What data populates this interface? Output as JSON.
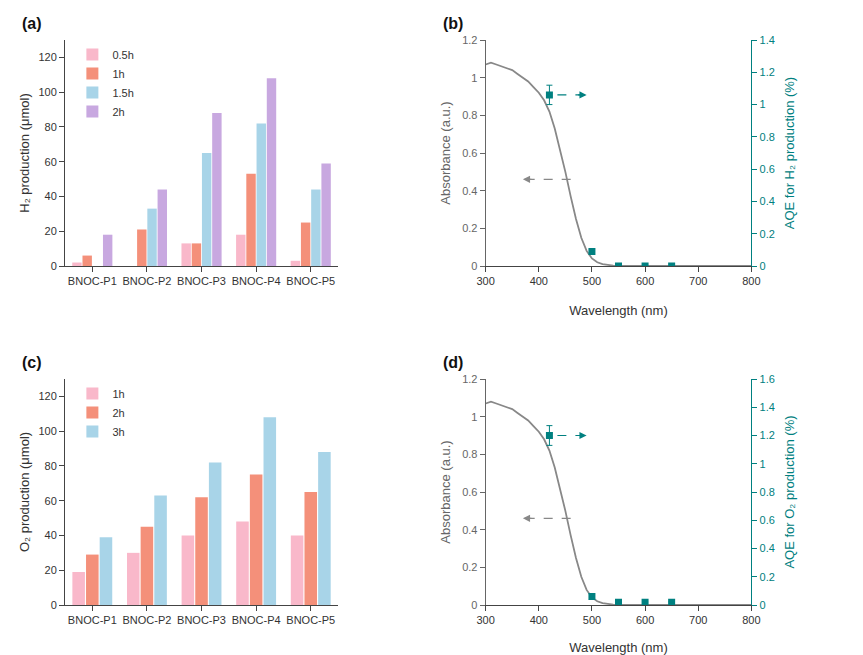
{
  "chart_data": [
    {
      "type": "bar",
      "title": "(a)",
      "categories": [
        "BNOC-P1",
        "BNOC-P2",
        "BNOC-P3",
        "BNOC-P4",
        "BNOC-P5"
      ],
      "series": [
        {
          "name": "0.5h",
          "color": "#F9B8CA",
          "values": [
            2,
            0,
            13,
            18,
            3
          ]
        },
        {
          "name": "1h",
          "color": "#F4907A",
          "values": [
            6,
            21,
            13,
            53,
            25
          ]
        },
        {
          "name": "1.5h",
          "color": "#A8D4E8",
          "values": [
            0,
            33,
            65,
            82,
            44
          ]
        },
        {
          "name": "2h",
          "color": "#C8A8E0",
          "values": [
            18,
            44,
            88,
            108,
            59
          ]
        }
      ],
      "y_label": "H₂ production (μmol)",
      "ylim": [
        0,
        130
      ],
      "yticks": [
        0,
        20,
        40,
        60,
        80,
        100,
        120
      ],
      "legend": "upper left",
      "grid": false
    },
    {
      "type": "line",
      "title": "(b)",
      "x_label": "Wavelength (nm)",
      "y_label": "Absorbance (a.u.)",
      "y2_label": "AQE for H₂ production (%)",
      "xlim": [
        300,
        800
      ],
      "xticks": [
        300,
        400,
        500,
        600,
        700,
        800
      ],
      "ylim": [
        0,
        1.2
      ],
      "yticks": [
        0,
        0.2,
        0.4,
        0.6,
        0.8,
        1,
        1.2
      ],
      "y2lim": [
        0,
        1.4
      ],
      "y2ticks": [
        0,
        0.2,
        0.4,
        0.6,
        0.8,
        1,
        1.2,
        1.4
      ],
      "grid": false,
      "series": [
        {
          "type": "line",
          "color": "#888888",
          "x": [
            300,
            310,
            320,
            330,
            340,
            350,
            360,
            370,
            380,
            390,
            400,
            410,
            420,
            430,
            440,
            450,
            460,
            470,
            480,
            490,
            500,
            510,
            520,
            530,
            540,
            550,
            560,
            570,
            580,
            590,
            600,
            620,
            640,
            660,
            700,
            750,
            800
          ],
          "values": [
            1.07,
            1.08,
            1.07,
            1.06,
            1.05,
            1.04,
            1.02,
            1.0,
            0.98,
            0.95,
            0.92,
            0.88,
            0.82,
            0.73,
            0.62,
            0.5,
            0.37,
            0.25,
            0.15,
            0.08,
            0.04,
            0.02,
            0.01,
            0.005,
            0.002,
            0.001,
            0.001,
            0.001,
            0.001,
            0.001,
            0.001,
            0.001,
            0.001,
            0.001,
            0.001,
            0.001,
            0.001
          ]
        },
        {
          "type": "scatter",
          "marker": "square",
          "axis": "y2",
          "color": "#008080",
          "x": [
            420,
            500,
            550,
            600,
            650
          ],
          "values": [
            1.06,
            0.09,
            0.0,
            0.0,
            0.0
          ],
          "yerr": [
            0.06,
            0.01,
            0.005,
            0.005,
            0.005
          ]
        }
      ],
      "arrows": [
        {
          "x_from": 460,
          "x_to": 370,
          "y": 0.46,
          "axis": "y",
          "color": "#888888"
        },
        {
          "x_from": 435,
          "x_to": 490,
          "y": 1.06,
          "axis": "y2",
          "color": "#008080"
        }
      ]
    },
    {
      "type": "bar",
      "title": "(c)",
      "categories": [
        "BNOC-P1",
        "BNOC-P2",
        "BNOC-P3",
        "BNOC-P4",
        "BNOC-P5"
      ],
      "series": [
        {
          "name": "1h",
          "color": "#F9B8CA",
          "values": [
            19,
            30,
            40,
            48,
            40
          ]
        },
        {
          "name": "2h",
          "color": "#F4907A",
          "values": [
            29,
            45,
            62,
            75,
            65
          ]
        },
        {
          "name": "3h",
          "color": "#A8D4E8",
          "values": [
            39,
            63,
            82,
            108,
            88
          ]
        }
      ],
      "y_label": "O₂ production (μmol)",
      "ylim": [
        0,
        130
      ],
      "yticks": [
        0,
        20,
        40,
        60,
        80,
        100,
        120
      ],
      "legend": "upper left",
      "grid": false
    },
    {
      "type": "line",
      "title": "(d)",
      "x_label": "Wavelength (nm)",
      "y_label": "Absorbance (a.u.)",
      "y2_label": "AQE for O₂ production (%)",
      "xlim": [
        300,
        800
      ],
      "xticks": [
        300,
        400,
        500,
        600,
        700,
        800
      ],
      "ylim": [
        0,
        1.2
      ],
      "yticks": [
        0,
        0.2,
        0.4,
        0.6,
        0.8,
        1,
        1.2
      ],
      "y2lim": [
        0,
        1.6
      ],
      "y2ticks": [
        0,
        0.2,
        0.4,
        0.6,
        0.8,
        1,
        1.2,
        1.4,
        1.6
      ],
      "grid": false,
      "series": [
        {
          "type": "line",
          "color": "#888888",
          "x": [
            300,
            310,
            320,
            330,
            340,
            350,
            360,
            370,
            380,
            390,
            400,
            410,
            420,
            430,
            440,
            450,
            460,
            470,
            480,
            490,
            500,
            510,
            520,
            530,
            540,
            550,
            560,
            570,
            580,
            590,
            600,
            620,
            640,
            660,
            700,
            750,
            800
          ],
          "values": [
            1.07,
            1.08,
            1.07,
            1.06,
            1.05,
            1.04,
            1.02,
            1.0,
            0.98,
            0.95,
            0.92,
            0.88,
            0.82,
            0.73,
            0.62,
            0.5,
            0.37,
            0.25,
            0.15,
            0.08,
            0.04,
            0.02,
            0.01,
            0.005,
            0.002,
            0.001,
            0.001,
            0.001,
            0.001,
            0.001,
            0.001,
            0.001,
            0.001,
            0.001,
            0.001,
            0.001,
            0.001
          ]
        },
        {
          "type": "scatter",
          "marker": "square",
          "axis": "y2",
          "color": "#008080",
          "x": [
            420,
            500,
            550,
            600,
            650
          ],
          "values": [
            1.2,
            0.06,
            0.02,
            0.02,
            0.02
          ],
          "yerr": [
            0.07,
            0.02,
            0.005,
            0.005,
            0.005
          ]
        }
      ],
      "arrows": [
        {
          "x_from": 460,
          "x_to": 370,
          "y": 0.46,
          "axis": "y",
          "color": "#888888"
        },
        {
          "x_from": 435,
          "x_to": 490,
          "y": 1.2,
          "axis": "y2",
          "color": "#008080"
        }
      ]
    }
  ]
}
